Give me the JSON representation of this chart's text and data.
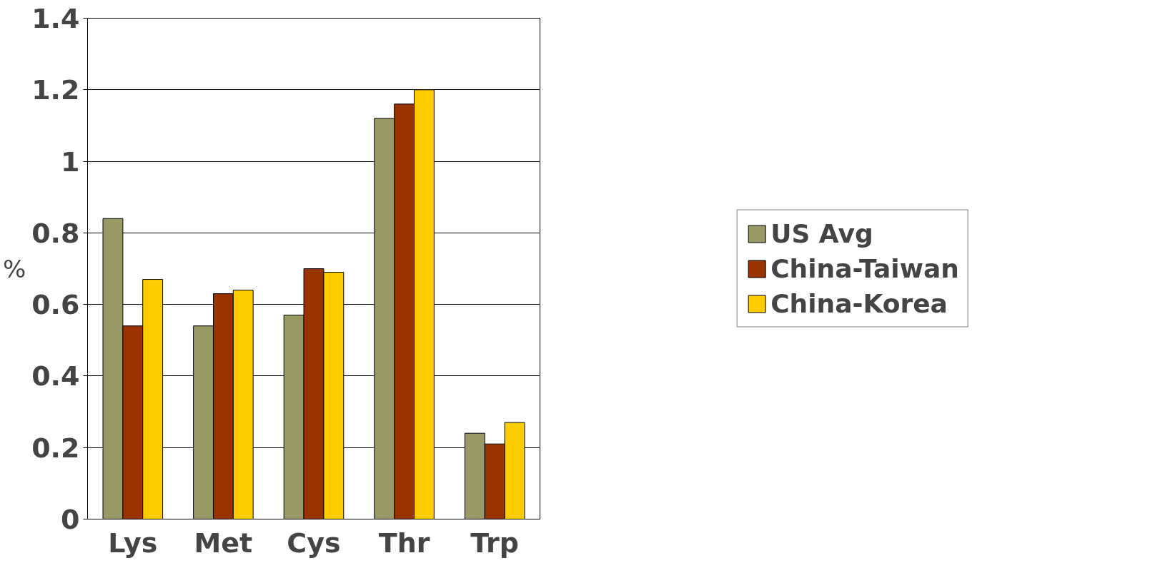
{
  "chart_data": {
    "type": "bar",
    "ylabel": "%",
    "categories": [
      "Lys",
      "Met",
      "Cys",
      "Thr",
      "Trp"
    ],
    "series": [
      {
        "name": "US Avg",
        "color": "#999966",
        "values": [
          0.84,
          0.54,
          0.57,
          1.12,
          0.24
        ]
      },
      {
        "name": "China-Taiwan",
        "color": "#993300",
        "values": [
          0.54,
          0.63,
          0.7,
          1.16,
          0.21
        ]
      },
      {
        "name": "China-Korea",
        "color": "#ffcc00",
        "values": [
          0.67,
          0.64,
          0.69,
          1.2,
          0.27
        ]
      }
    ],
    "ylim": [
      0,
      1.4
    ],
    "yticks": [
      0,
      0.2,
      0.4,
      0.6,
      0.8,
      1,
      1.2,
      1.4
    ],
    "grid": "y",
    "legend": "right"
  }
}
